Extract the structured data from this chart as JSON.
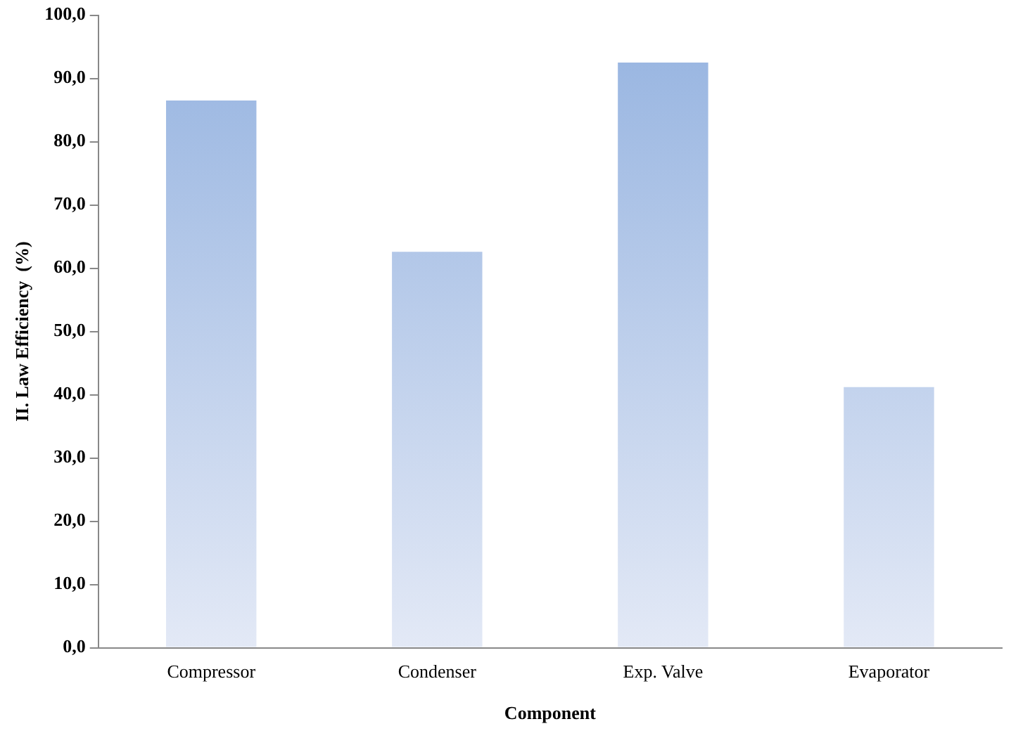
{
  "chart_data": {
    "type": "bar",
    "xlabel": "Component",
    "ylabel": "II. Law Efficiency  (%)",
    "categories": [
      "Compressor",
      "Condenser",
      "Exp. Valve",
      "Evaporator"
    ],
    "values": [
      86.5,
      62.6,
      92.5,
      41.2
    ],
    "color": "#95b3e0",
    "ylim": [
      0,
      100
    ],
    "yticks": [
      {
        "value": 0,
        "label": "0,0"
      },
      {
        "value": 10,
        "label": "10,0"
      },
      {
        "value": 20,
        "label": "20,0"
      },
      {
        "value": 30,
        "label": "30,0"
      },
      {
        "value": 40,
        "label": "40,0"
      },
      {
        "value": 50,
        "label": "50,0"
      },
      {
        "value": 60,
        "label": "60,0"
      },
      {
        "value": 70,
        "label": "70,0"
      },
      {
        "value": 80,
        "label": "80,0"
      },
      {
        "value": 90,
        "label": "90,0"
      },
      {
        "value": 100,
        "label": "100,0"
      }
    ],
    "grid": false,
    "legend": false
  }
}
